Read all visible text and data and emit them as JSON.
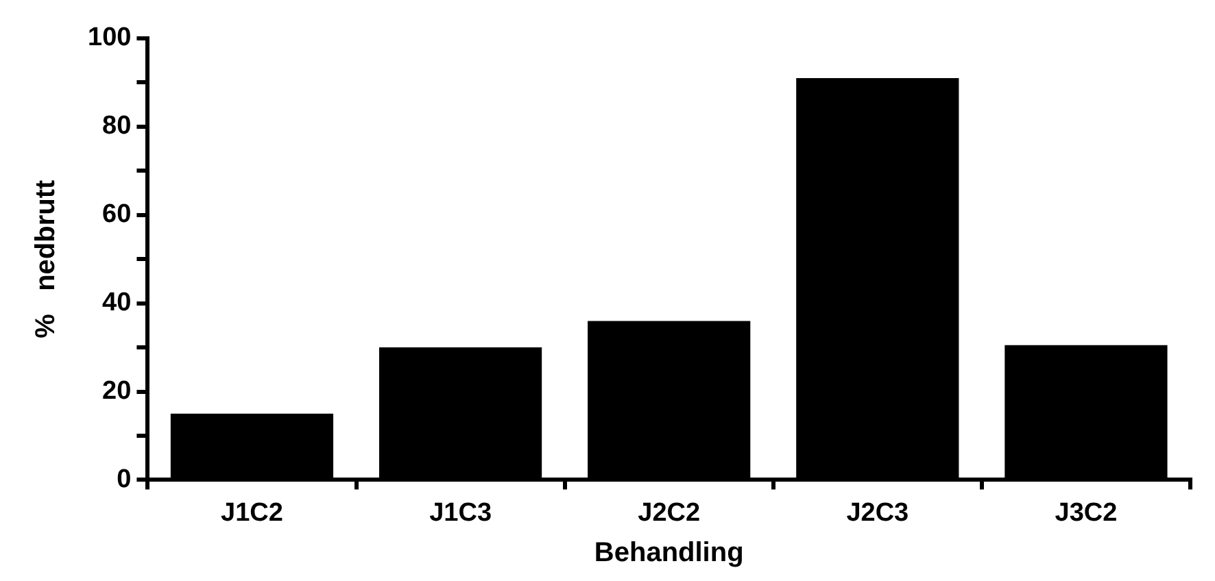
{
  "chart_data": {
    "type": "bar",
    "xlabel": "Behandling",
    "ylabel": "%   nedbrutt",
    "categories": [
      "J1C2",
      "J1C3",
      "J2C2",
      "J2C3",
      "J3C2"
    ],
    "values": [
      15,
      30,
      36,
      91,
      30.5
    ],
    "color": "#000000",
    "ylim": [
      0,
      100
    ],
    "yticks": [
      0,
      {
        "value": 10,
        "label": null
      },
      20,
      {
        "value": 30,
        "label": null
      },
      40,
      {
        "value": 50,
        "label": null
      },
      60,
      {
        "value": 70,
        "label": null
      },
      80,
      {
        "value": 90,
        "label": null
      },
      100
    ],
    "grid": false,
    "legend": false
  }
}
